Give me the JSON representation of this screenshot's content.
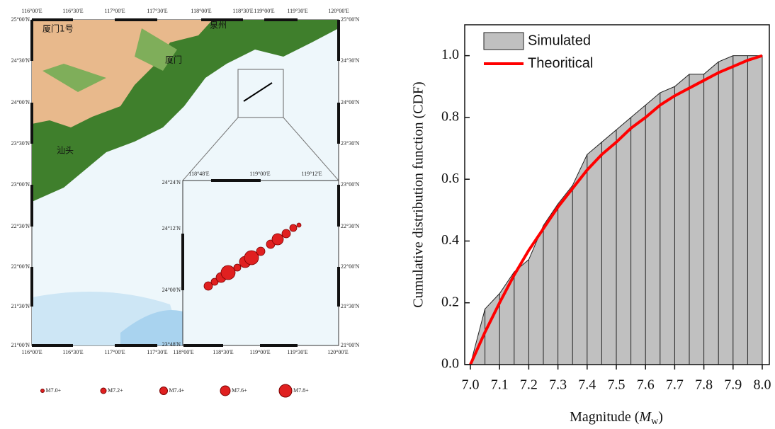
{
  "map": {
    "top_labels": [
      "116°00'E",
      "116°30'E",
      "117°00'E",
      "117°30'E",
      "118°00'E",
      "118°30'E",
      "119°00'E",
      "119°30'E",
      "120°00'E"
    ],
    "bottom_labels": [
      "116°00'E",
      "116°30'E",
      "117°00'E",
      "117°30'E",
      "118°00'E",
      "118°30'E",
      "119°00'E",
      "119°30'E",
      "120°00'E"
    ],
    "left_labels": [
      "25°00'N",
      "24°30'N",
      "24°00'N",
      "23°30'N",
      "23°00'N",
      "22°30'N",
      "22°00'N",
      "21°30'N",
      "21°00'N"
    ],
    "right_labels": [
      "25°00'N",
      "24°30'N",
      "24°00'N",
      "23°30'N",
      "23°00'N",
      "22°30'N",
      "22°00'N",
      "21°30'N",
      "21°00'N"
    ],
    "inset_top_labels": [
      "118°48'E",
      "119°00'E",
      "119°12'E"
    ],
    "inset_left_labels": [
      "24°24'N",
      "24°12'N",
      "24°00'N",
      "23°48'N"
    ],
    "places": [
      "厦门1号",
      "泉州",
      "厦门",
      "汕头"
    ],
    "legend": [
      "M7.0+",
      "M7.2+",
      "M7.4+",
      "M7.6+",
      "M7.8+"
    ]
  },
  "chart_data": {
    "type": "area_line",
    "x_label": [
      "Magnitude (",
      "M",
      "w",
      ")"
    ],
    "y_label": "Cumulative distribution function (CDF)",
    "x": [
      7.0,
      7.05,
      7.1,
      7.15,
      7.2,
      7.25,
      7.3,
      7.35,
      7.4,
      7.45,
      7.5,
      7.55,
      7.6,
      7.65,
      7.7,
      7.75,
      7.8,
      7.85,
      7.9,
      7.95,
      8.0
    ],
    "series": [
      {
        "name": "Simulated",
        "color": "#c0c0c0",
        "values": [
          0,
          0.18,
          0.23,
          0.3,
          0.34,
          0.45,
          0.52,
          0.58,
          0.68,
          0.72,
          0.76,
          0.8,
          0.84,
          0.88,
          0.9,
          0.94,
          0.94,
          0.98,
          1.0,
          1.0,
          1.0
        ]
      },
      {
        "name": "Theoritical",
        "color": "#ff0000",
        "values": [
          0,
          0.105,
          0.2,
          0.29,
          0.37,
          0.44,
          0.51,
          0.57,
          0.63,
          0.68,
          0.72,
          0.765,
          0.8,
          0.84,
          0.87,
          0.895,
          0.92,
          0.945,
          0.965,
          0.985,
          1.0
        ]
      }
    ],
    "xlim": [
      7.0,
      8.0
    ],
    "ylim": [
      0,
      1.1
    ],
    "xticks": [
      {
        "value": 7,
        "label": "7.0"
      },
      7.1,
      7.2,
      7.3,
      7.4,
      7.5,
      7.6,
      7.7,
      7.8,
      7.9,
      {
        "value": 8,
        "label": "8.0"
      }
    ],
    "yticks": [
      {
        "value": 0,
        "label": "0.0"
      },
      0.2,
      0.4,
      0.6,
      0.8,
      {
        "value": 1,
        "label": "1.0"
      }
    ],
    "legend": "upper-left"
  }
}
